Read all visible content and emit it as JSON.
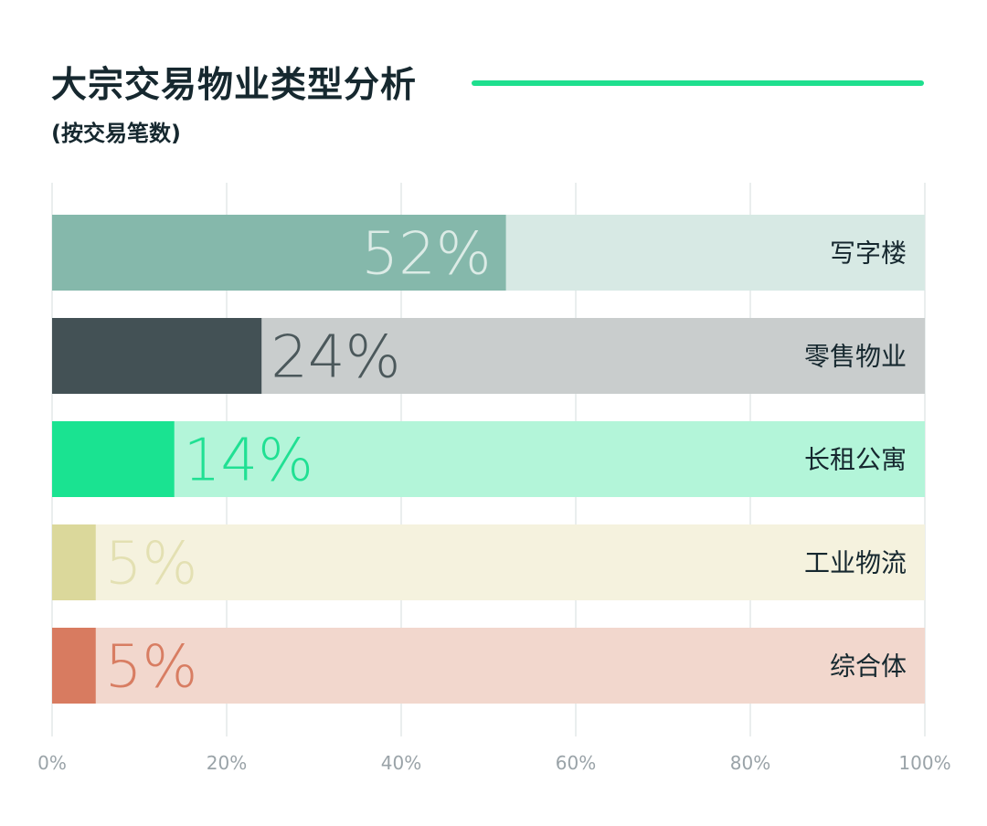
{
  "title": "大宗交易物业类型分析",
  "subtitle": "(按交易笔数)",
  "colors": {
    "title_rule": "#1edf8e",
    "grid": "#e4e8e9",
    "tick_text": "#9aa3a8"
  },
  "chart_data": {
    "type": "bar",
    "orientation": "horizontal",
    "categories": [
      "写字楼",
      "零售物业",
      "长租公寓",
      "工业物流",
      "综合体"
    ],
    "values": [
      52,
      24,
      14,
      5,
      5
    ],
    "value_labels": [
      "52%",
      "24%",
      "14%",
      "5%",
      "5%"
    ],
    "xlim": [
      0,
      100
    ],
    "x_ticks": [
      0,
      20,
      40,
      60,
      80,
      100
    ],
    "x_tick_labels": [
      "0%",
      "20%",
      "40%",
      "60%",
      "80%",
      "100%"
    ],
    "grid": true,
    "legend": "none",
    "bar_colors": [
      "#85b8ab",
      "#435155",
      "#1ae391",
      "#dbd89b",
      "#d87b60"
    ],
    "track_colors": [
      "#d7e9e4",
      "#c9cdcd",
      "#b3f5d9",
      "#f5f2de",
      "#f2d7cd"
    ],
    "label_colors": [
      "#dcebe6",
      "#4b585b",
      "#20e093",
      "#e3e0b2",
      "#d87d62"
    ]
  }
}
